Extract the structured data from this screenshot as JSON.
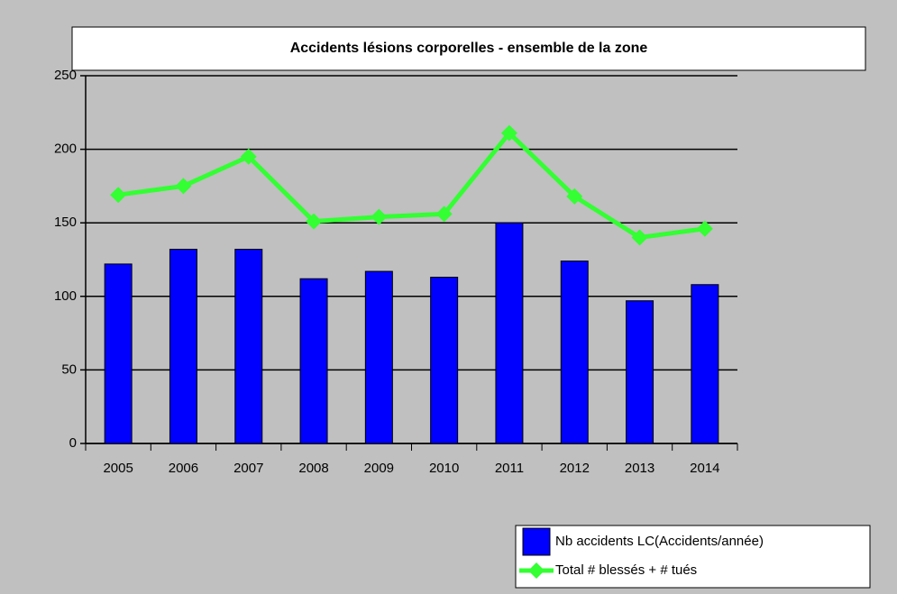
{
  "chart_data": {
    "type": "bar",
    "title": "Accidents lésions corporelles - ensemble de la zone",
    "categories": [
      "2005",
      "2006",
      "2007",
      "2008",
      "2009",
      "2010",
      "2011",
      "2012",
      "2013",
      "2014"
    ],
    "series": [
      {
        "name": "Nb accidents LC(Accidents/année)",
        "type": "bar",
        "color": "#0000ff",
        "values": [
          122,
          132,
          132,
          112,
          117,
          113,
          150,
          124,
          97,
          108
        ]
      },
      {
        "name": "Total # blessés + # tués",
        "type": "line",
        "color": "#33ff33",
        "values": [
          169,
          175,
          195,
          151,
          154,
          156,
          211,
          168,
          140,
          146
        ]
      }
    ],
    "ylim": [
      0,
      250
    ],
    "yticks": [
      0,
      50,
      100,
      150,
      200,
      250
    ],
    "grid": true,
    "legend": "bottom-right"
  }
}
